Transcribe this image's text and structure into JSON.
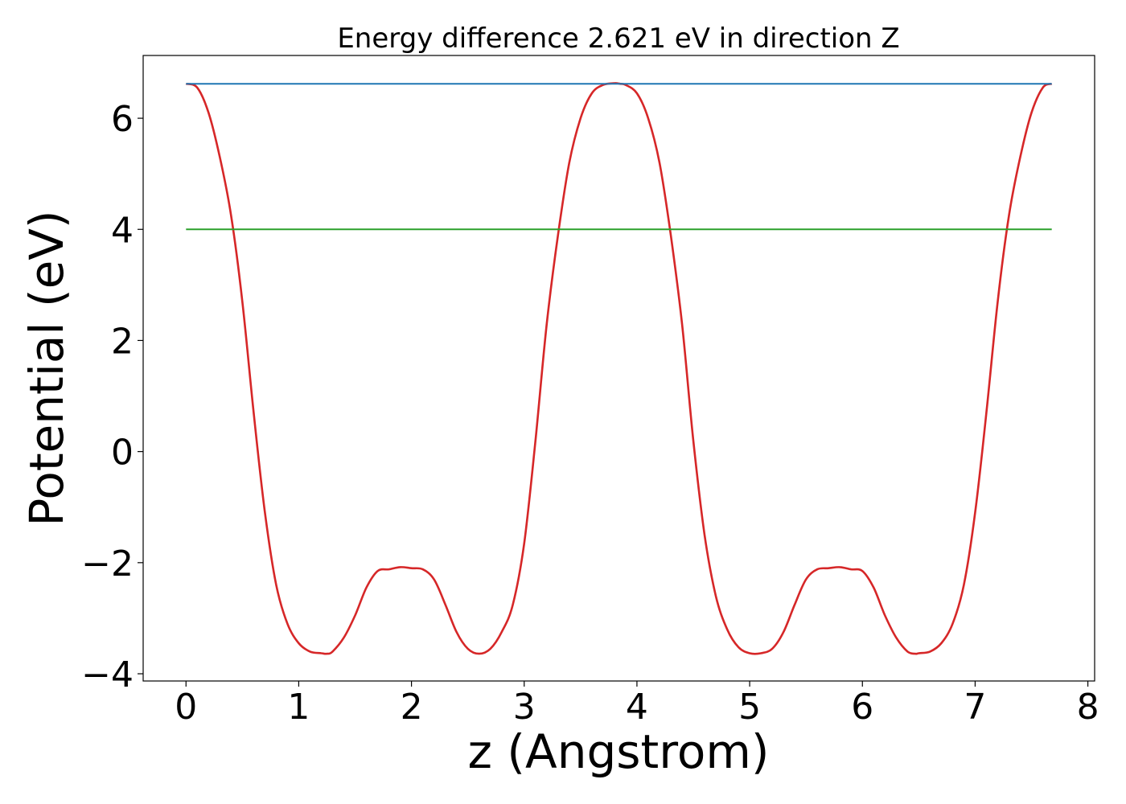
{
  "chart_data": {
    "type": "line",
    "title": "Energy difference 2.621 eV in direction Z",
    "xlabel": "z (Angstrom)",
    "ylabel": "Potential (eV)",
    "xlim": [
      -0.38,
      8.06
    ],
    "ylim": [
      -4.13,
      7.13
    ],
    "x_ticks": [
      "0",
      "1",
      "2",
      "3",
      "4",
      "5",
      "6",
      "7",
      "8"
    ],
    "y_ticks": [
      "−4",
      "−2",
      "0",
      "2",
      "4",
      "6"
    ],
    "grid": false,
    "legend": "none",
    "series": [
      {
        "color": "#d62728",
        "x": [
          0.0,
          0.1,
          0.2,
          0.3,
          0.4,
          0.5,
          0.6,
          0.7,
          0.8,
          0.9,
          1.0,
          1.1,
          1.2,
          1.25,
          1.3,
          1.4,
          1.5,
          1.6,
          1.7,
          1.8,
          1.9,
          2.0,
          2.1,
          2.2,
          2.3,
          2.4,
          2.5,
          2.6,
          2.7,
          2.8,
          2.9,
          3.0,
          3.1,
          3.2,
          3.3,
          3.4,
          3.5,
          3.6,
          3.7,
          3.8,
          3.85,
          3.9,
          4.0,
          4.1,
          4.2,
          4.3,
          4.4,
          4.5,
          4.6,
          4.7,
          4.8,
          4.9,
          5.0,
          5.1,
          5.2,
          5.3,
          5.4,
          5.5,
          5.6,
          5.7,
          5.8,
          5.9,
          6.0,
          6.1,
          6.2,
          6.3,
          6.4,
          6.47,
          6.5,
          6.6,
          6.7,
          6.8,
          6.9,
          7.0,
          7.1,
          7.2,
          7.3,
          7.4,
          7.5,
          7.6,
          7.68
        ],
        "y": [
          6.62,
          6.55,
          6.1,
          5.3,
          4.25,
          2.7,
          0.7,
          -1.1,
          -2.4,
          -3.1,
          -3.45,
          -3.6,
          -3.63,
          -3.64,
          -3.6,
          -3.35,
          -2.95,
          -2.45,
          -2.15,
          -2.12,
          -2.08,
          -2.1,
          -2.12,
          -2.3,
          -2.75,
          -3.25,
          -3.55,
          -3.64,
          -3.55,
          -3.25,
          -2.75,
          -1.65,
          0.2,
          2.3,
          3.9,
          5.2,
          6.0,
          6.45,
          6.6,
          6.63,
          6.62,
          6.6,
          6.45,
          6.0,
          5.2,
          3.9,
          2.3,
          0.2,
          -1.5,
          -2.6,
          -3.2,
          -3.52,
          -3.63,
          -3.63,
          -3.55,
          -3.25,
          -2.75,
          -2.3,
          -2.12,
          -2.1,
          -2.08,
          -2.12,
          -2.15,
          -2.45,
          -2.95,
          -3.35,
          -3.6,
          -3.64,
          -3.63,
          -3.6,
          -3.45,
          -3.1,
          -2.4,
          -1.1,
          0.7,
          2.7,
          4.25,
          5.3,
          6.1,
          6.55,
          6.62
        ]
      },
      {
        "color": "#1f77b4",
        "x": [
          0.0,
          7.68
        ],
        "y": [
          6.621,
          6.621
        ]
      },
      {
        "color": "#2ca02c",
        "x": [
          0.0,
          7.68
        ],
        "y": [
          4.0,
          4.0
        ]
      }
    ]
  }
}
